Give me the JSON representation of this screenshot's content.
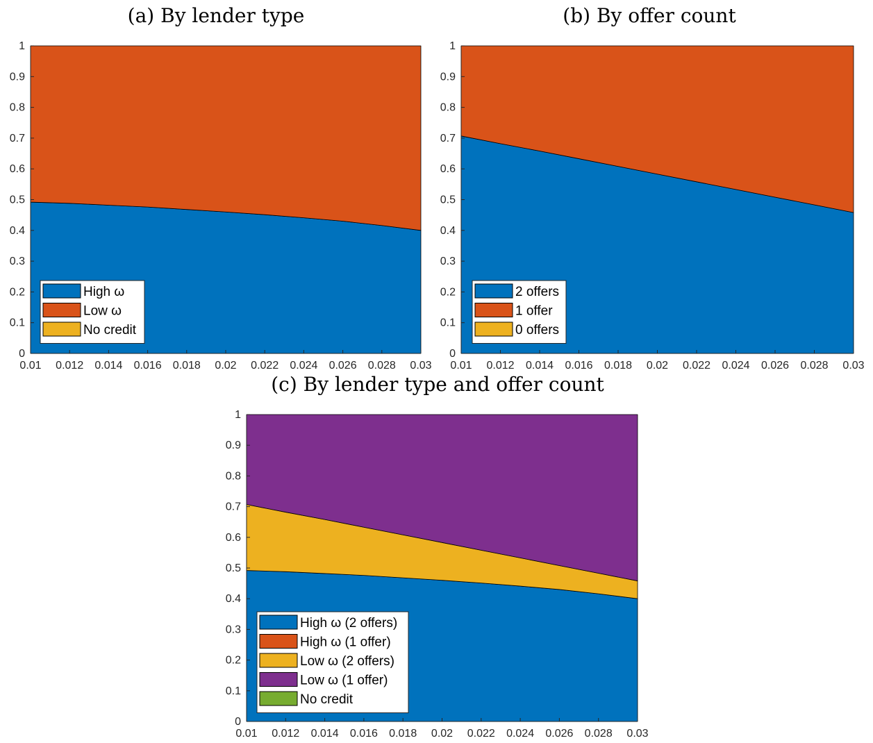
{
  "colors": {
    "blue": "#0072BD",
    "orange": "#D95319",
    "yellow": "#EDB120",
    "purple": "#7E2F8E",
    "green": "#77AC30",
    "axis": "#262626"
  },
  "chart_data": [
    {
      "type": "area",
      "title": "(a) By lender type",
      "x": [
        0.01,
        0.012,
        0.014,
        0.016,
        0.018,
        0.02,
        0.022,
        0.024,
        0.026,
        0.028,
        0.03
      ],
      "xlim": [
        0.01,
        0.03
      ],
      "ylim": [
        0,
        1
      ],
      "xticks": [
        "0.01",
        "0.012",
        "0.014",
        "0.016",
        "0.018",
        "0.02",
        "0.022",
        "0.024",
        "0.026",
        "0.028",
        "0.03"
      ],
      "yticks": [
        "0",
        "0.1",
        "0.2",
        "0.3",
        "0.4",
        "0.5",
        "0.6",
        "0.7",
        "0.8",
        "0.9",
        "1"
      ],
      "stacked": true,
      "legend_position": "bottom-left",
      "series": [
        {
          "name": "High ω",
          "color": "#0072BD",
          "values": [
            0.492,
            0.488,
            0.482,
            0.476,
            0.468,
            0.46,
            0.451,
            0.441,
            0.43,
            0.416,
            0.4
          ]
        },
        {
          "name": "Low ω",
          "color": "#D95319",
          "values": [
            0.508,
            0.512,
            0.518,
            0.524,
            0.532,
            0.54,
            0.549,
            0.559,
            0.57,
            0.584,
            0.6
          ]
        },
        {
          "name": "No credit",
          "color": "#EDB120",
          "values": [
            0,
            0,
            0,
            0,
            0,
            0,
            0,
            0,
            0,
            0,
            0
          ]
        }
      ]
    },
    {
      "type": "area",
      "title": "(b) By offer count",
      "x": [
        0.01,
        0.012,
        0.014,
        0.016,
        0.018,
        0.02,
        0.022,
        0.024,
        0.026,
        0.028,
        0.03
      ],
      "xlim": [
        0.01,
        0.03
      ],
      "ylim": [
        0,
        1
      ],
      "xticks": [
        "0.01",
        "0.012",
        "0.014",
        "0.016",
        "0.018",
        "0.02",
        "0.022",
        "0.024",
        "0.026",
        "0.028",
        "0.03"
      ],
      "yticks": [
        "0",
        "0.1",
        "0.2",
        "0.3",
        "0.4",
        "0.5",
        "0.6",
        "0.7",
        "0.8",
        "0.9",
        "1"
      ],
      "stacked": true,
      "legend_position": "bottom-left",
      "series": [
        {
          "name": "2 offers",
          "color": "#0072BD",
          "values": [
            0.707,
            0.682,
            0.658,
            0.633,
            0.608,
            0.583,
            0.558,
            0.533,
            0.508,
            0.483,
            0.458
          ]
        },
        {
          "name": "1 offer",
          "color": "#D95319",
          "values": [
            0.293,
            0.318,
            0.342,
            0.367,
            0.392,
            0.417,
            0.442,
            0.467,
            0.492,
            0.517,
            0.542
          ]
        },
        {
          "name": "0 offers",
          "color": "#EDB120",
          "values": [
            0,
            0,
            0,
            0,
            0,
            0,
            0,
            0,
            0,
            0,
            0
          ]
        }
      ]
    },
    {
      "type": "area",
      "title": "(c) By lender type and offer count",
      "x": [
        0.01,
        0.012,
        0.014,
        0.016,
        0.018,
        0.02,
        0.022,
        0.024,
        0.026,
        0.028,
        0.03
      ],
      "xlim": [
        0.01,
        0.03
      ],
      "ylim": [
        0,
        1
      ],
      "xticks": [
        "0.01",
        "0.012",
        "0.014",
        "0.016",
        "0.018",
        "0.02",
        "0.022",
        "0.024",
        "0.026",
        "0.028",
        "0.03"
      ],
      "yticks": [
        "0",
        "0.1",
        "0.2",
        "0.3",
        "0.4",
        "0.5",
        "0.6",
        "0.7",
        "0.8",
        "0.9",
        "1"
      ],
      "stacked": true,
      "legend_position": "bottom-left",
      "series": [
        {
          "name": "High ω (2 offers)",
          "color": "#0072BD",
          "values": [
            0.492,
            0.488,
            0.482,
            0.476,
            0.468,
            0.46,
            0.451,
            0.441,
            0.43,
            0.416,
            0.4
          ]
        },
        {
          "name": "High ω (1 offer)",
          "color": "#D95319",
          "values": [
            0,
            0,
            0,
            0,
            0,
            0,
            0,
            0,
            0,
            0,
            0
          ]
        },
        {
          "name": "Low ω (2 offers)",
          "color": "#EDB120",
          "values": [
            0.215,
            0.194,
            0.176,
            0.157,
            0.14,
            0.123,
            0.107,
            0.092,
            0.078,
            0.067,
            0.058
          ]
        },
        {
          "name": "Low ω (1 offer)",
          "color": "#7E2F8E",
          "values": [
            0.293,
            0.318,
            0.342,
            0.367,
            0.392,
            0.417,
            0.442,
            0.467,
            0.492,
            0.517,
            0.542
          ]
        },
        {
          "name": "No credit",
          "color": "#77AC30",
          "values": [
            0,
            0,
            0,
            0,
            0,
            0,
            0,
            0,
            0,
            0,
            0
          ]
        }
      ]
    }
  ]
}
